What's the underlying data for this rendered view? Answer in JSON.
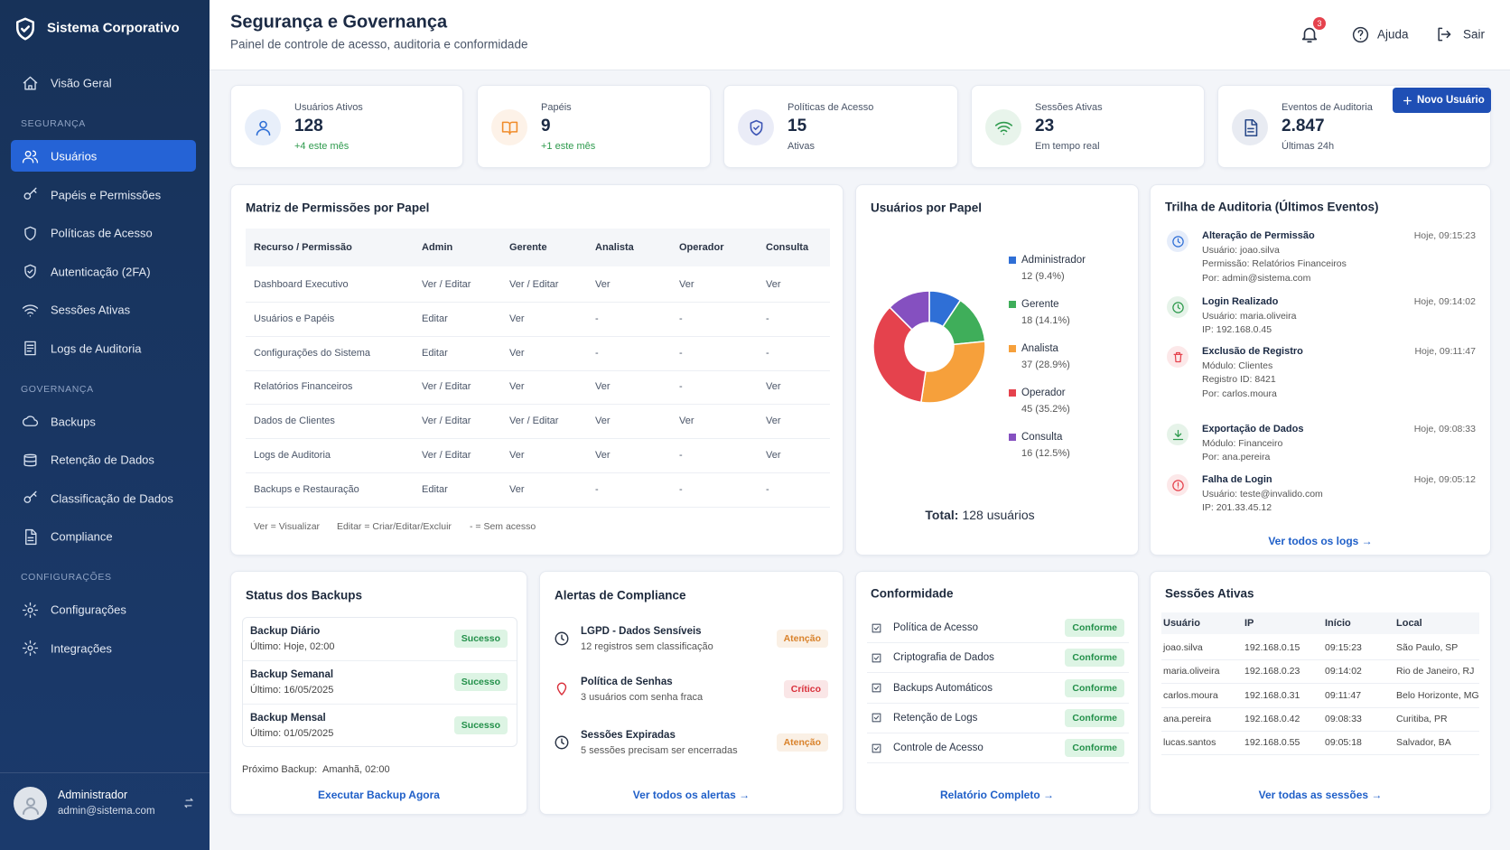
{
  "sidebar": {
    "brand": "Sistema Corporativo",
    "top": [
      {
        "label": "Visão Geral"
      }
    ],
    "sections": [
      {
        "title": "SEGURANÇA",
        "items": [
          {
            "label": "Usuários",
            "active": true
          },
          {
            "label": "Papéis e Permissões"
          },
          {
            "label": "Políticas de Acesso"
          },
          {
            "label": "Autenticação (2FA)"
          },
          {
            "label": "Sessões Ativas"
          },
          {
            "label": "Logs de Auditoria"
          }
        ]
      },
      {
        "title": "GOVERNANÇA",
        "items": [
          {
            "label": "Backups"
          },
          {
            "label": "Retenção de Dados"
          },
          {
            "label": "Classificação de Dados"
          },
          {
            "label": "Compliance"
          }
        ]
      },
      {
        "title": "CONFIGURAÇÕES",
        "items": [
          {
            "label": "Configurações"
          },
          {
            "label": "Integrações"
          }
        ]
      }
    ],
    "user": {
      "name": "Administrador",
      "email": "admin@sistema.com"
    }
  },
  "header": {
    "title": "Segurança e Governança",
    "subtitle": "Painel de controle de acesso, auditoria e conformidade",
    "notifications": "3",
    "help": "Ajuda",
    "logout": "Sair",
    "new_user": "Novo Usuário"
  },
  "stats": [
    {
      "label": "Usuários Ativos",
      "value": "128",
      "note": "+4 este mês",
      "color": "#2f6fd6",
      "note_color": "#2e9a4d"
    },
    {
      "label": "Papéis",
      "value": "9",
      "note": "+1 este mês",
      "color": "#f08c2b",
      "note_color": "#2e9a4d"
    },
    {
      "label": "Políticas de Acesso",
      "value": "15",
      "note": "Ativas",
      "color": "#3d55b5",
      "note_color": "#4a5568"
    },
    {
      "label": "Sessões Ativas",
      "value": "23",
      "note": "Em tempo real",
      "color": "#2e9a4d",
      "note_color": "#4a5568"
    },
    {
      "label": "Eventos de Auditoria",
      "value": "2.847",
      "note": "Últimas 24h",
      "color": "#2a4a8a",
      "note_color": "#4a5568"
    }
  ],
  "permissions": {
    "title": "Matriz de Permissões por Papel",
    "columns": [
      "Recurso / Permissão",
      "Admin",
      "Gerente",
      "Analista",
      "Operador",
      "Consulta"
    ],
    "rows": [
      [
        "Dashboard Executivo",
        "Ver / Editar",
        "Ver / Editar",
        "Ver",
        "Ver",
        "Ver"
      ],
      [
        "Usuários e Papéis",
        "Editar",
        "Ver",
        "-",
        "-",
        "-"
      ],
      [
        "Configurações do Sistema",
        "Editar",
        "Ver",
        "-",
        "-",
        "-"
      ],
      [
        "Relatórios Financeiros",
        "Ver / Editar",
        "Ver",
        "Ver",
        "-",
        "Ver"
      ],
      [
        "Dados de Clientes",
        "Ver / Editar",
        "Ver / Editar",
        "Ver",
        "Ver",
        "Ver"
      ],
      [
        "Logs de Auditoria",
        "Ver / Editar",
        "Ver",
        "Ver",
        "-",
        "Ver"
      ],
      [
        "Backups e Restauração",
        "Editar",
        "Ver",
        "-",
        "-",
        "-"
      ]
    ],
    "legend": [
      "Ver = Visualizar",
      "Editar = Criar/Editar/Excluir",
      "- = Sem acesso"
    ]
  },
  "role_chart": {
    "title": "Usuários por Papel",
    "series": [
      {
        "name": "Administrador",
        "color": "#2f6fd6",
        "value": 12,
        "value_label": "12 (9.4%)"
      },
      {
        "name": "Gerente",
        "color": "#3fae5a",
        "value": 18,
        "value_label": "18 (14.1%)"
      },
      {
        "name": "Analista",
        "color": "#f6a03b",
        "value": 37,
        "value_label": "37 (28.9%)"
      },
      {
        "name": "Operador",
        "color": "#e5424d",
        "value": 45,
        "value_label": "45 (35.2%)"
      },
      {
        "name": "Consulta",
        "color": "#8550c0",
        "value": 16,
        "value_label": "16 (12.5%)"
      }
    ],
    "total_label": "Total:",
    "total_value": "128 usuários"
  },
  "audit": {
    "title": "Trilha de Auditoria (Últimos Eventos)",
    "events": [
      {
        "title": "Alteração de Permissão",
        "time": "Hoje, 09:15:23",
        "lines": [
          "Usuário: joao.silva",
          "Permissão: Relatórios Financeiros",
          "Por: admin@sistema.com"
        ],
        "color": "#2f6fd6"
      },
      {
        "title": "Login Realizado",
        "time": "Hoje, 09:14:02",
        "lines": [
          "Usuário: maria.oliveira",
          "IP: 192.168.0.45"
        ],
        "color": "#2e9a4d"
      },
      {
        "title": "Exclusão de Registro",
        "time": "Hoje, 09:11:47",
        "lines": [
          "Módulo: Clientes",
          "Registro ID: 8421",
          "Por: carlos.moura"
        ],
        "color": "#e5424d"
      },
      {
        "title": "Exportação de Dados",
        "time": "Hoje, 09:08:33",
        "lines": [
          "Módulo: Financeiro",
          "Por: ana.pereira"
        ],
        "color": "#2e9a4d"
      },
      {
        "title": "Falha de Login",
        "time": "Hoje, 09:05:12",
        "lines": [
          "Usuário: teste@invalido.com",
          "IP: 201.33.45.12"
        ],
        "color": "#e5424d"
      }
    ],
    "link": "Ver todos os logs →"
  },
  "backups": {
    "title": "Status dos Backups",
    "items": [
      {
        "name": "Backup Diário",
        "detail": "Último: Hoje, 02:00",
        "status": "Sucesso"
      },
      {
        "name": "Backup Semanal",
        "detail": "Último: 16/05/2025",
        "status": "Sucesso"
      },
      {
        "name": "Backup Mensal",
        "detail": "Último: 01/05/2025",
        "status": "Sucesso"
      }
    ],
    "next_label": "Próximo Backup:",
    "next_value": "Amanhã, 02:00",
    "action": "Executar Backup Agora"
  },
  "alerts": {
    "title": "Alertas de Compliance",
    "items": [
      {
        "title": "LGPD - Dados Sensíveis",
        "detail": "12 registros sem classificação",
        "status": "Atenção",
        "color": "#d9822b"
      },
      {
        "title": "Política de Senhas",
        "detail": "3 usuários com senha fraca",
        "status": "Crítico",
        "color": "#d9303b"
      },
      {
        "title": "Sessões Expiradas",
        "detail": "5 sessões precisam ser encerradas",
        "status": "Atenção",
        "color": "#d9822b"
      }
    ],
    "link": "Ver todos os alertas →"
  },
  "conformity": {
    "title": "Conformidade",
    "items": [
      {
        "name": "Política de Acesso",
        "status": "Conforme"
      },
      {
        "name": "Criptografia de Dados",
        "status": "Conforme"
      },
      {
        "name": "Backups Automáticos",
        "status": "Conforme"
      },
      {
        "name": "Retenção de Logs",
        "status": "Conforme"
      },
      {
        "name": "Controle de Acesso",
        "status": "Conforme"
      }
    ],
    "link": "Relatório Completo →"
  },
  "sessions": {
    "title": "Sessões Ativas",
    "columns": [
      "Usuário",
      "IP",
      "Início",
      "Local"
    ],
    "rows": [
      [
        "joao.silva",
        "192.168.0.15",
        "09:15:23",
        "São Paulo, SP"
      ],
      [
        "maria.oliveira",
        "192.168.0.23",
        "09:14:02",
        "Rio de Janeiro, RJ"
      ],
      [
        "carlos.moura",
        "192.168.0.31",
        "09:11:47",
        "Belo Horizonte, MG"
      ],
      [
        "ana.pereira",
        "192.168.0.42",
        "09:08:33",
        "Curitiba, PR"
      ],
      [
        "lucas.santos",
        "192.168.0.55",
        "09:05:18",
        "Salvador, BA"
      ]
    ],
    "link": "Ver todas as sessões →"
  }
}
